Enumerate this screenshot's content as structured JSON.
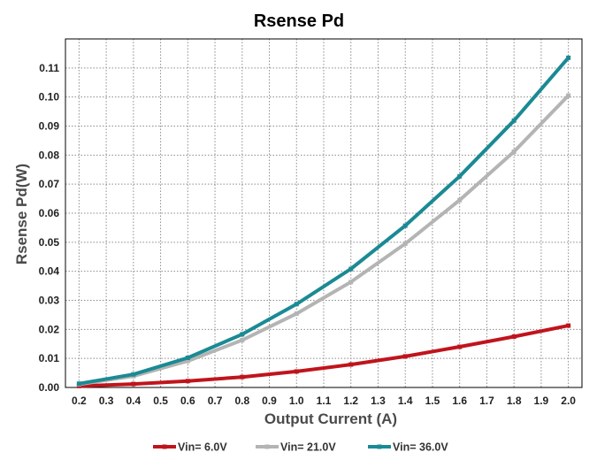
{
  "chart_data": {
    "type": "line",
    "title": "Rsense Pd",
    "xlabel": "Output Current (A)",
    "ylabel": "Rsense Pd(W)",
    "xlim": [
      0.15,
      2.05
    ],
    "ylim": [
      0.0,
      0.12
    ],
    "x_ticks": [
      "0.2",
      "0.3",
      "0.4",
      "0.5",
      "0.6",
      "0.7",
      "0.8",
      "0.9",
      "1.0",
      "1.1",
      "1.2",
      "1.3",
      "1.4",
      "1.5",
      "1.6",
      "1.7",
      "1.8",
      "1.9",
      "2.0"
    ],
    "y_ticks": [
      "0.00",
      "0.01",
      "0.02",
      "0.03",
      "0.04",
      "0.05",
      "0.06",
      "0.07",
      "0.08",
      "0.09",
      "0.10",
      "0.11"
    ],
    "grid": true,
    "legend_position": "bottom-center",
    "x": [
      0.2,
      0.4,
      0.6,
      0.8,
      1.0,
      1.2,
      1.4,
      1.6,
      1.8,
      2.0
    ],
    "series": [
      {
        "name": "Vin= 6.0V",
        "color": "#c0141c",
        "values": [
          0.0005,
          0.0012,
          0.0022,
          0.0036,
          0.0055,
          0.0079,
          0.0107,
          0.014,
          0.0175,
          0.0213
        ]
      },
      {
        "name": "Vin= 21.0V",
        "color": "#b4b4b4",
        "values": [
          0.0011,
          0.0039,
          0.0091,
          0.0163,
          0.0254,
          0.0363,
          0.0495,
          0.0645,
          0.0812,
          0.1005
        ]
      },
      {
        "name": "Vin= 36.0V",
        "color": "#1a8a94",
        "values": [
          0.0013,
          0.0045,
          0.0102,
          0.0183,
          0.0287,
          0.0408,
          0.0557,
          0.0727,
          0.0919,
          0.1135
        ]
      }
    ]
  }
}
